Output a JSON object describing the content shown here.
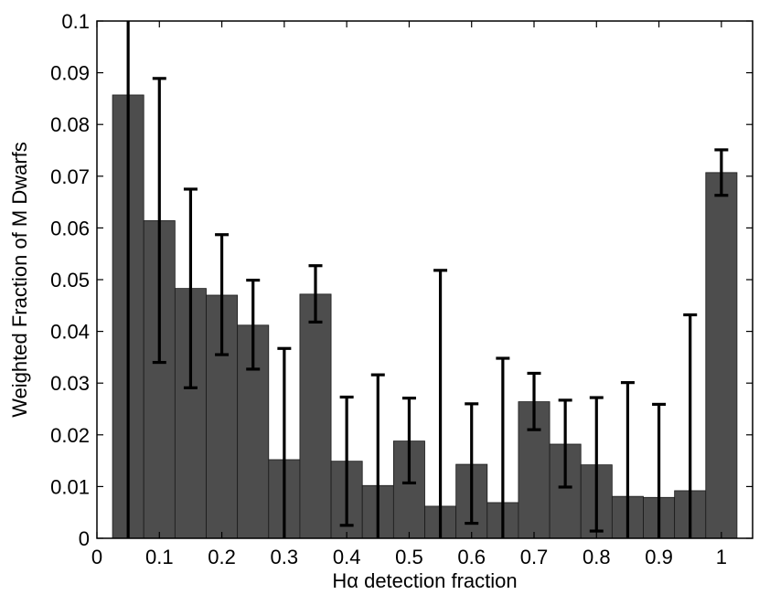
{
  "chart_data": {
    "type": "bar",
    "title": "",
    "xlabel": "Hα detection fraction",
    "ylabel": "Weighted Fraction of M Dwarfs",
    "xlim": [
      0,
      1.05
    ],
    "ylim": [
      0,
      0.1
    ],
    "bar_width": 0.05,
    "grid": false,
    "legend": "none",
    "colors": {
      "bar": "#4d4d4d",
      "bar_edge": "#1a1a1a",
      "error": "#000000",
      "axis": "#000000"
    },
    "xticks": [
      0,
      0.1,
      0.2,
      0.3,
      0.4,
      0.5,
      0.6,
      0.7,
      0.8,
      0.9,
      1
    ],
    "xtick_labels": [
      "0",
      "0.1",
      "0.2",
      "0.3",
      "0.4",
      "0.5",
      "0.6",
      "0.7",
      "0.8",
      "0.9",
      "1"
    ],
    "yticks": [
      0,
      0.01,
      0.02,
      0.03,
      0.04,
      0.05,
      0.06,
      0.07,
      0.08,
      0.09,
      0.1
    ],
    "ytick_labels": [
      "0",
      "0.01",
      "0.02",
      "0.03",
      "0.04",
      "0.05",
      "0.06",
      "0.07",
      "0.08",
      "0.09",
      "0.1"
    ],
    "x": [
      0.05,
      0.1,
      0.15,
      0.2,
      0.25,
      0.3,
      0.35,
      0.4,
      0.45,
      0.5,
      0.55,
      0.6,
      0.65,
      0.7,
      0.75,
      0.8,
      0.85,
      0.9,
      0.95,
      1.0
    ],
    "values": [
      0.0857,
      0.0614,
      0.0483,
      0.047,
      0.0412,
      0.0152,
      0.0472,
      0.0149,
      0.0102,
      0.0188,
      0.0062,
      0.0143,
      0.0069,
      0.0264,
      0.0182,
      0.0142,
      0.0081,
      0.0079,
      0.0092,
      0.0707
    ],
    "error_low": [
      0,
      0.034,
      0.0291,
      0.0355,
      0.0327,
      0,
      0.0418,
      0.0025,
      0,
      0.0107,
      0,
      0.0029,
      0,
      0.021,
      0.0099,
      0.0014,
      0,
      0,
      0,
      0.0663
    ],
    "error_high": [
      0.1,
      0.0889,
      0.0675,
      0.0587,
      0.0499,
      0.0367,
      0.0527,
      0.0273,
      0.0316,
      0.0271,
      0.0518,
      0.026,
      0.0348,
      0.0319,
      0.0267,
      0.0272,
      0.0301,
      0.0259,
      0.0432,
      0.0751
    ]
  }
}
